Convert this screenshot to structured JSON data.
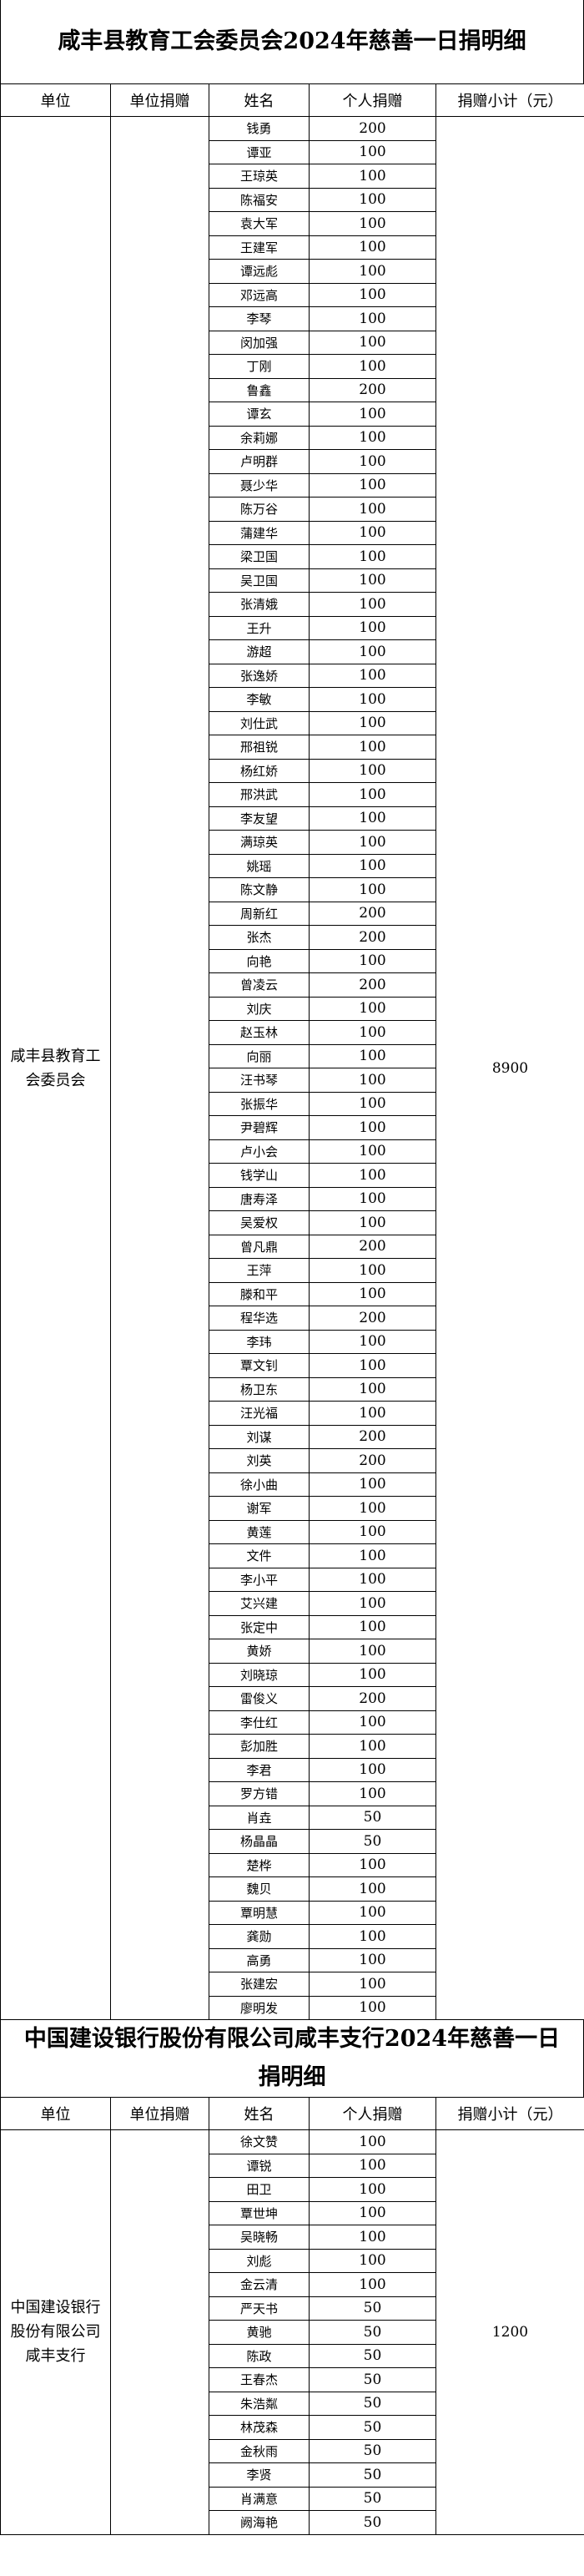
{
  "headers": [
    "单位",
    "单位捐赠",
    "姓名",
    "个人捐赠",
    "捐赠小计（元）"
  ],
  "tables": [
    {
      "title": "咸丰县教育工会委员会2024年慈善一日捐明细",
      "unit": "咸丰县教育工会委员会",
      "unit_donation": "",
      "subtotal": "8900",
      "rows": [
        [
          "钱勇",
          "200"
        ],
        [
          "谭亚",
          "100"
        ],
        [
          "王琼英",
          "100"
        ],
        [
          "陈福安",
          "100"
        ],
        [
          "袁大军",
          "100"
        ],
        [
          "王建军",
          "100"
        ],
        [
          "谭远彪",
          "100"
        ],
        [
          "邓远高",
          "100"
        ],
        [
          "李琴",
          "100"
        ],
        [
          "闵加强",
          "100"
        ],
        [
          "丁刚",
          "100"
        ],
        [
          "鲁鑫",
          "200"
        ],
        [
          "谭玄",
          "100"
        ],
        [
          "余莉娜",
          "100"
        ],
        [
          "卢明群",
          "100"
        ],
        [
          "聂少华",
          "100"
        ],
        [
          "陈万谷",
          "100"
        ],
        [
          "蒲建华",
          "100"
        ],
        [
          "梁卫国",
          "100"
        ],
        [
          "吴卫国",
          "100"
        ],
        [
          "张清娥",
          "100"
        ],
        [
          "王升",
          "100"
        ],
        [
          "游超",
          "100"
        ],
        [
          "张逸娇",
          "100"
        ],
        [
          "李敏",
          "100"
        ],
        [
          "刘仕武",
          "100"
        ],
        [
          "邢祖锐",
          "100"
        ],
        [
          "杨红娇",
          "100"
        ],
        [
          "邢洪武",
          "100"
        ],
        [
          "李友望",
          "100"
        ],
        [
          "满琼英",
          "100"
        ],
        [
          "姚瑶",
          "100"
        ],
        [
          "陈文静",
          "100"
        ],
        [
          "周新红",
          "200"
        ],
        [
          "张杰",
          "200"
        ],
        [
          "向艳",
          "100"
        ],
        [
          "曾凌云",
          "200"
        ],
        [
          "刘庆",
          "100"
        ],
        [
          "赵玉林",
          "100"
        ],
        [
          "向丽",
          "100"
        ],
        [
          "汪书琴",
          "100"
        ],
        [
          "张振华",
          "100"
        ],
        [
          "尹碧辉",
          "100"
        ],
        [
          "卢小会",
          "100"
        ],
        [
          "钱学山",
          "100"
        ],
        [
          "唐寿泽",
          "100"
        ],
        [
          "吴爱权",
          "100"
        ],
        [
          "曾凡鼎",
          "200"
        ],
        [
          "王萍",
          "100"
        ],
        [
          "滕和平",
          "100"
        ],
        [
          "程华选",
          "200"
        ],
        [
          "李玮",
          "100"
        ],
        [
          "覃文钊",
          "100"
        ],
        [
          "杨卫东",
          "100"
        ],
        [
          "汪光福",
          "100"
        ],
        [
          "刘谋",
          "200"
        ],
        [
          "刘英",
          "200"
        ],
        [
          "徐小曲",
          "100"
        ],
        [
          "谢军",
          "100"
        ],
        [
          "黄莲",
          "100"
        ],
        [
          "文件",
          "100"
        ],
        [
          "李小平",
          "100"
        ],
        [
          "艾兴建",
          "100"
        ],
        [
          "张定中",
          "100"
        ],
        [
          "黄娇",
          "100"
        ],
        [
          "刘晓琼",
          "100"
        ],
        [
          "雷俊义",
          "200"
        ],
        [
          "李仕红",
          "100"
        ],
        [
          "彭加胜",
          "100"
        ],
        [
          "李君",
          "100"
        ],
        [
          "罗方错",
          "100"
        ],
        [
          "肖垚",
          "50"
        ],
        [
          "杨晶晶",
          "50"
        ],
        [
          "楚桦",
          "100"
        ],
        [
          "魏贝",
          "100"
        ],
        [
          "覃明慧",
          "100"
        ],
        [
          "龚勋",
          "100"
        ],
        [
          "高勇",
          "100"
        ],
        [
          "张建宏",
          "100"
        ],
        [
          "廖明发",
          "100"
        ]
      ]
    },
    {
      "title": "中国建设银行股份有限公司咸丰支行2024年慈善一日捐明细",
      "unit": "中国建设银行股份有限公司咸丰支行",
      "unit_donation": "",
      "subtotal": "1200",
      "rows": [
        [
          "徐文赞",
          "100"
        ],
        [
          "谭锐",
          "100"
        ],
        [
          "田卫",
          "100"
        ],
        [
          "覃世坤",
          "100"
        ],
        [
          "吴晓畅",
          "100"
        ],
        [
          "刘彪",
          "100"
        ],
        [
          "金云清",
          "100"
        ],
        [
          "严天书",
          "50"
        ],
        [
          "黄驰",
          "50"
        ],
        [
          "陈政",
          "50"
        ],
        [
          "王春杰",
          "50"
        ],
        [
          "朱浩粼",
          "50"
        ],
        [
          "林茂森",
          "50"
        ],
        [
          "金秋雨",
          "50"
        ],
        [
          "李贤",
          "50"
        ],
        [
          "肖满意",
          "50"
        ],
        [
          "阙海艳",
          "50"
        ]
      ]
    }
  ]
}
